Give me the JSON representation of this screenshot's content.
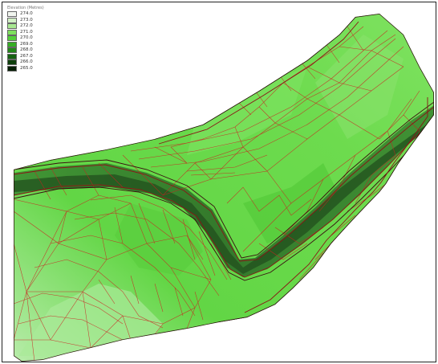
{
  "legend": {
    "title": "Elevation (Metres)",
    "items": [
      {
        "label": "274.0",
        "color": "#f2f6f0"
      },
      {
        "label": "273.0",
        "color": "#d2f0c6"
      },
      {
        "label": "272.0",
        "color": "#a8e891"
      },
      {
        "label": "271.0",
        "color": "#7fe05e"
      },
      {
        "label": "270.0",
        "color": "#53cf39"
      },
      {
        "label": "269.0",
        "color": "#35ad24"
      },
      {
        "label": "268.0",
        "color": "#238719"
      },
      {
        "label": "267.0",
        "color": "#166212"
      },
      {
        "label": "266.0",
        "color": "#0d3f0b"
      },
      {
        "label": "265.0",
        "color": "#061e05"
      }
    ]
  },
  "colors": {
    "terrain_light": "#93e97a",
    "terrain_mid": "#5dd43f",
    "channel_dark": "#2f6a2a",
    "mesh_line": "#cc2020",
    "bank_line": "#3a1010"
  }
}
